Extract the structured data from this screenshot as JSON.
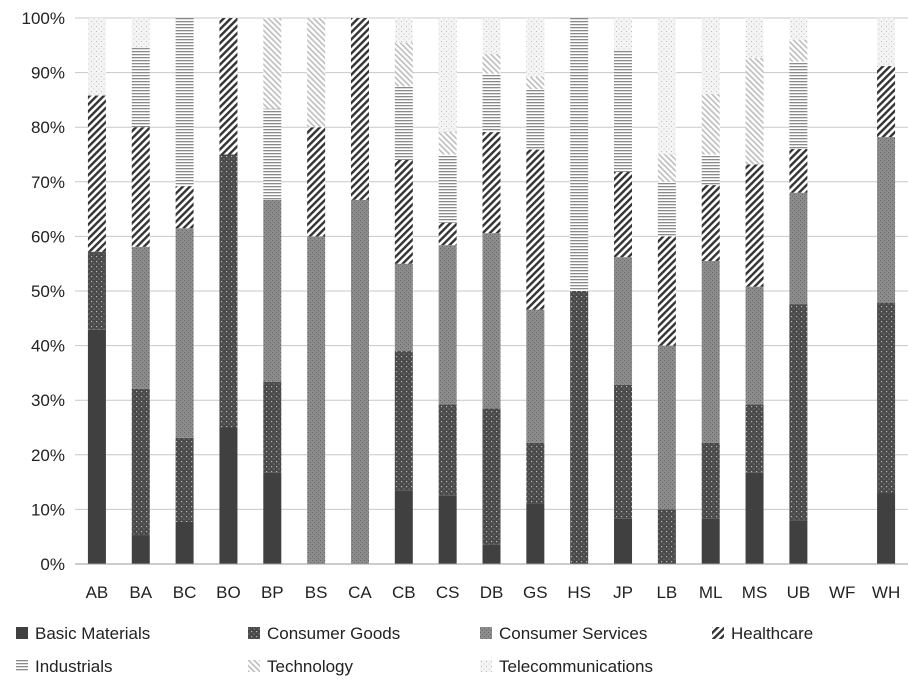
{
  "chart_data": {
    "type": "bar",
    "stacked": true,
    "normalized": true,
    "categories": [
      "AB",
      "BA",
      "BC",
      "BO",
      "BP",
      "BS",
      "CA",
      "CB",
      "CS",
      "DB",
      "GS",
      "HS",
      "JP",
      "LB",
      "ML",
      "MS",
      "UB",
      "WF",
      "WH"
    ],
    "y_ticks": [
      "0%",
      "10%",
      "20%",
      "30%",
      "40%",
      "50%",
      "60%",
      "70%",
      "80%",
      "90%",
      "100%"
    ],
    "ylim": [
      0,
      100
    ],
    "grid": true,
    "legend_position": "bottom",
    "series": [
      {
        "name": "Basic Materials",
        "values": [
          42.9,
          5.3,
          7.7,
          25,
          16.7,
          0,
          0,
          13.5,
          12.5,
          3.6,
          11.1,
          0,
          8.3,
          0,
          8.3,
          16.7,
          8,
          0,
          13
        ]
      },
      {
        "name": "Consumer Goods",
        "values": [
          14.3,
          26.8,
          15.4,
          50,
          16.7,
          0,
          0,
          25.5,
          16.7,
          24.9,
          11.1,
          50,
          24.5,
          10,
          13.9,
          12.5,
          39.6,
          0,
          34.8
        ]
      },
      {
        "name": "Consumer Services",
        "values": [
          0,
          26,
          38.4,
          0,
          33.3,
          60,
          66.7,
          16,
          29.2,
          32.1,
          24.4,
          0,
          23.4,
          30,
          33.3,
          21.6,
          20.4,
          0,
          30.4
        ]
      },
      {
        "name": "Healthcare",
        "values": [
          28.6,
          21.9,
          7.7,
          25,
          0,
          20,
          33.3,
          19,
          4.1,
          18.5,
          29.3,
          0,
          15.6,
          20,
          13.9,
          22.4,
          8,
          0,
          13
        ]
      },
      {
        "name": "Industrials",
        "values": [
          0,
          14.5,
          30.8,
          0,
          16.7,
          0,
          0,
          13.5,
          12.5,
          10.7,
          11.1,
          50,
          22.2,
          10,
          5.6,
          0,
          16,
          0,
          0
        ]
      },
      {
        "name": "Technology",
        "values": [
          0,
          0,
          0,
          0,
          16.6,
          20,
          0,
          8,
          4.2,
          3.6,
          2.2,
          0,
          0,
          5,
          11.1,
          19.5,
          4,
          0,
          0
        ]
      },
      {
        "name": "Telecommunications",
        "values": [
          14.2,
          5.5,
          0,
          0,
          0,
          0,
          0,
          4.5,
          20.8,
          6.6,
          10.8,
          0,
          6,
          25,
          13.9,
          7.3,
          4,
          0,
          8.8
        ]
      }
    ],
    "colors": [
      "#404040",
      "#4a4a4a",
      "#8c8c8c",
      "#333333",
      "#8a8a8a",
      "#bdbdbd",
      "#cfcfcf"
    ]
  }
}
